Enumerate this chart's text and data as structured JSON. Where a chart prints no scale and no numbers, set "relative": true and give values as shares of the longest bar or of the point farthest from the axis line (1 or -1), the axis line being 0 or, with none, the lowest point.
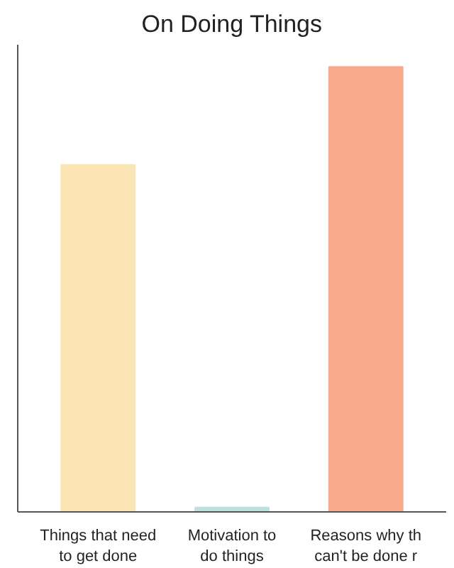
{
  "chart_data": {
    "type": "bar",
    "title": "On Doing Things",
    "relative": true,
    "categories": [
      "Things that need\nto get done",
      "Motivation to\ndo things",
      "Reasons why th\ncan't be done r"
    ],
    "values": [
      0.78,
      0.01,
      1
    ],
    "colors": [
      "#fbe5b4",
      "#bfe0e0",
      "#f9a98b"
    ]
  }
}
